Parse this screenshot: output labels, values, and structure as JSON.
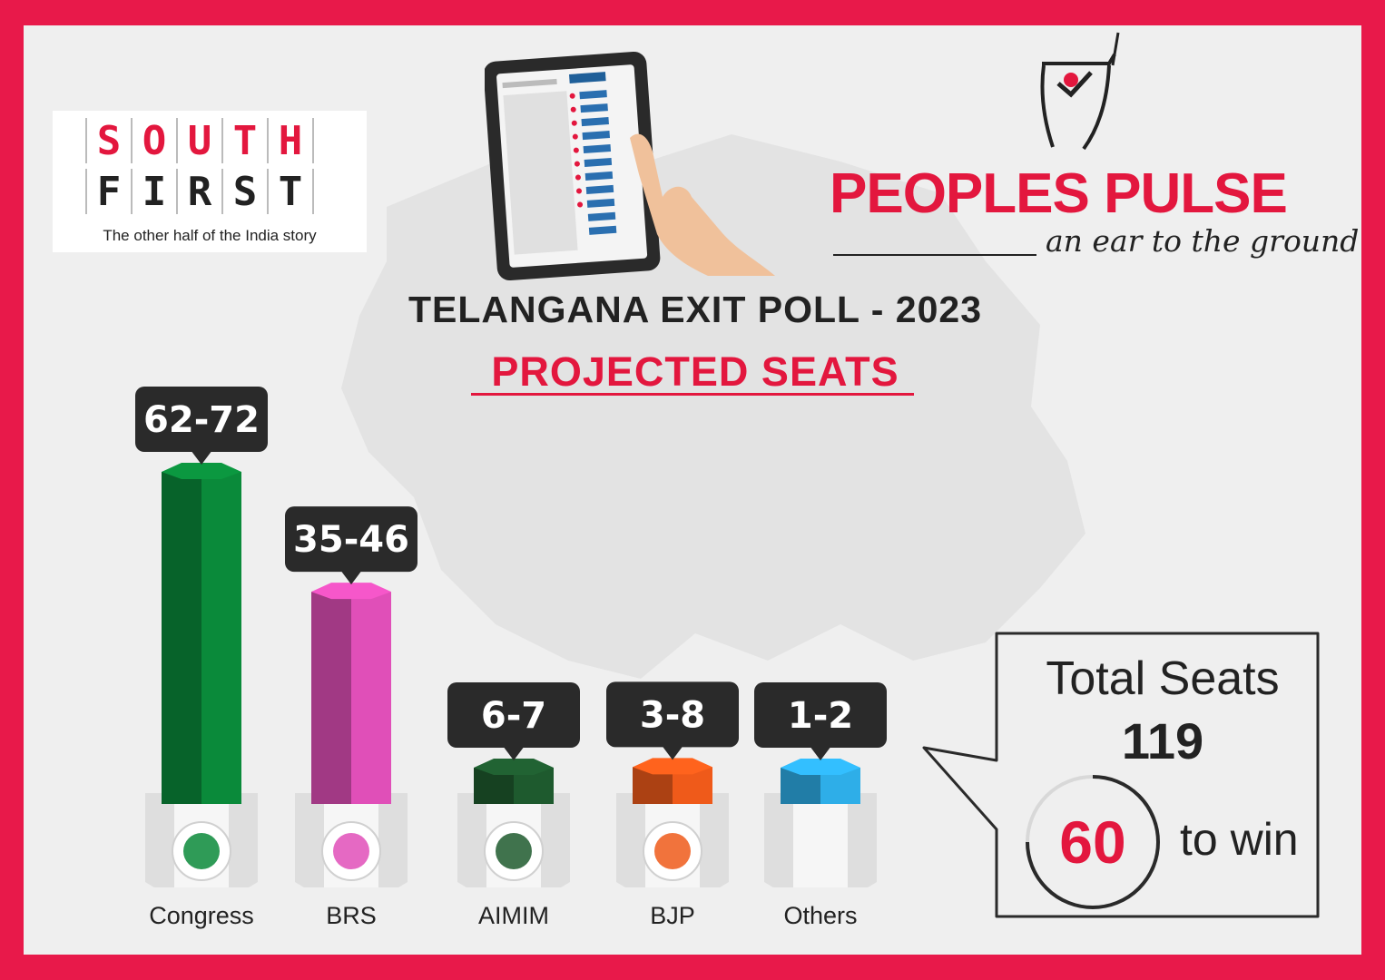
{
  "logos": {
    "south_first": {
      "row1": [
        "S",
        "O",
        "U",
        "T",
        "H"
      ],
      "row2": [
        "F",
        "I",
        "R",
        "S",
        "T"
      ],
      "tagline": "The other half of the India story"
    },
    "peoples_pulse": {
      "title": "PEOPLES PULSE",
      "tagline": "an ear to the ground"
    }
  },
  "header": {
    "title": "TELANGANA EXIT POLL - 2023",
    "subtitle": "PROJECTED SEATS"
  },
  "chart_data": {
    "type": "bar",
    "categories": [
      "Congress",
      "BRS",
      "AIMIM",
      "BJP",
      "Others"
    ],
    "value_labels": [
      "62-72",
      "35-46",
      "6-7",
      "3-8",
      "1-2"
    ],
    "ranges": [
      [
        62,
        72
      ],
      [
        35,
        46
      ],
      [
        6,
        7
      ],
      [
        3,
        8
      ],
      [
        1,
        2
      ]
    ],
    "colors": [
      "#0a8a3a",
      "#e04fb8",
      "#1e5a2e",
      "#ef5a1a",
      "#2eaee8"
    ],
    "icons": [
      "congress-hand-symbol-icon",
      "brs-car-symbol-icon",
      "aimim-kite-symbol-icon",
      "bjp-lotus-symbol-icon",
      ""
    ],
    "title": "PROJECTED SEATS"
  },
  "summary": {
    "total_label": "Total Seats",
    "total_value": "119",
    "win_value": "60",
    "win_label": "to win"
  },
  "colors": {
    "border": "#e8194a",
    "accent": "#e3173e",
    "background": "#efefef",
    "callout": "#2a2a2a"
  }
}
